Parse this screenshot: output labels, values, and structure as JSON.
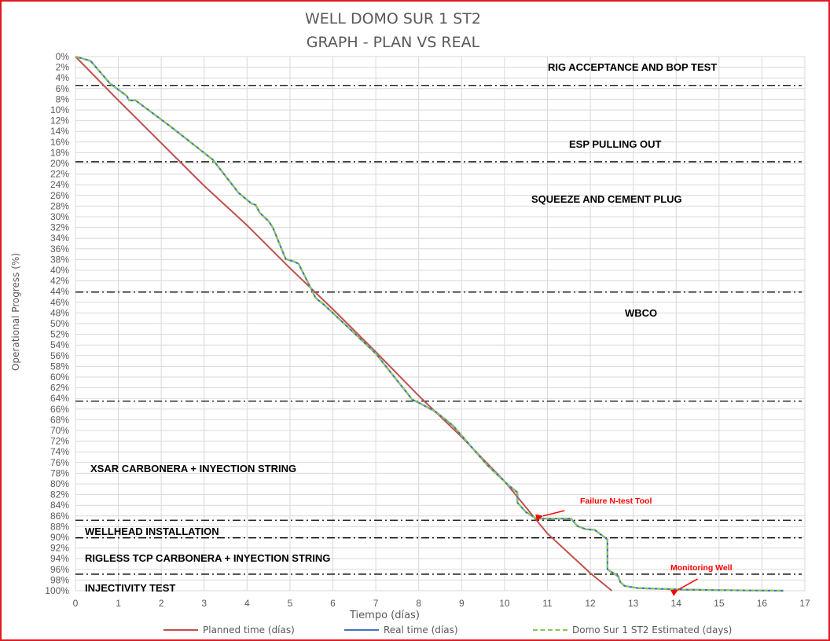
{
  "chart_data": {
    "type": "line",
    "title": "WELL DOMO SUR 1 ST2",
    "subtitle": "GRAPH  - PLAN VS REAL",
    "xlabel": "Tiempo (días)",
    "ylabel": "Operational Progress (%)",
    "xlim": [
      0,
      17
    ],
    "ylim": [
      0,
      100
    ],
    "y_inverted": true,
    "x_ticks": [
      0,
      1,
      2,
      3,
      4,
      5,
      6,
      7,
      8,
      9,
      10,
      11,
      12,
      13,
      14,
      15,
      16,
      17
    ],
    "y_ticks": [
      "0%",
      "2%",
      "4%",
      "6%",
      "8%",
      "10%",
      "12%",
      "14%",
      "16%",
      "18%",
      "20%",
      "22%",
      "24%",
      "26%",
      "28%",
      "30%",
      "32%",
      "34%",
      "36%",
      "38%",
      "40%",
      "42%",
      "44%",
      "46%",
      "48%",
      "50%",
      "52%",
      "54%",
      "56%",
      "58%",
      "60%",
      "62%",
      "64%",
      "66%",
      "68%",
      "70%",
      "72%",
      "74%",
      "76%",
      "78%",
      "80%",
      "82%",
      "84%",
      "86%",
      "88%",
      "90%",
      "92%",
      "94%",
      "96%",
      "98%",
      "100%"
    ],
    "grid": true,
    "legend_position": "bottom",
    "series": [
      {
        "name": "Planned time (días)",
        "color": "#c0504d",
        "points": [
          [
            0,
            0
          ],
          [
            1,
            8.2
          ],
          [
            2,
            16.2
          ],
          [
            3,
            24.2
          ],
          [
            4,
            31.6
          ],
          [
            5,
            39.6
          ],
          [
            6,
            47.3
          ],
          [
            7,
            55.3
          ],
          [
            8,
            63.5
          ],
          [
            9,
            71.2
          ],
          [
            10,
            79.5
          ],
          [
            11,
            89.3
          ],
          [
            12,
            96.7
          ],
          [
            12.5,
            100
          ]
        ]
      },
      {
        "name": "Real time (días)",
        "color": "#4472c4",
        "points": [
          [
            0,
            0
          ],
          [
            0.35,
            0.8
          ],
          [
            0.8,
            5.0
          ],
          [
            1.2,
            7.4
          ],
          [
            1.25,
            8.2
          ],
          [
            1.4,
            8.2
          ],
          [
            2.2,
            13.0
          ],
          [
            3.2,
            19.3
          ],
          [
            3.8,
            25.5
          ],
          [
            4.1,
            27.5
          ],
          [
            4.2,
            27.8
          ],
          [
            4.3,
            29.3
          ],
          [
            4.5,
            30.8
          ],
          [
            4.6,
            32.0
          ],
          [
            4.9,
            37.9
          ],
          [
            5.1,
            38.4
          ],
          [
            5.2,
            38.8
          ],
          [
            5.6,
            45.2
          ],
          [
            5.8,
            46.5
          ],
          [
            6.5,
            51.8
          ],
          [
            7.0,
            55.6
          ],
          [
            7.85,
            64.2
          ],
          [
            8.0,
            64.8
          ],
          [
            8.4,
            66.5
          ],
          [
            8.8,
            69.1
          ],
          [
            9.6,
            76.5
          ],
          [
            10.1,
            80.3
          ],
          [
            10.3,
            81.6
          ],
          [
            10.3,
            83.5
          ],
          [
            10.5,
            85.3
          ],
          [
            10.75,
            86.5
          ],
          [
            11.55,
            86.5
          ],
          [
            11.7,
            87.9
          ],
          [
            11.9,
            88.5
          ],
          [
            12.1,
            88.6
          ],
          [
            12.4,
            90.4
          ],
          [
            12.4,
            96.0
          ],
          [
            12.65,
            97.3
          ],
          [
            12.7,
            98.4
          ],
          [
            12.8,
            99.1
          ],
          [
            13.1,
            99.5
          ],
          [
            14.2,
            99.8
          ],
          [
            15.0,
            99.9
          ],
          [
            16.5,
            100
          ]
        ]
      },
      {
        "name": "Domo Sur 1 ST2 Estimated (days)",
        "color": "#8cc751",
        "dashed": true,
        "points": [
          [
            0,
            0
          ],
          [
            0.35,
            0.8
          ],
          [
            0.8,
            5.0
          ],
          [
            1.2,
            7.4
          ],
          [
            1.25,
            8.2
          ],
          [
            1.4,
            8.2
          ],
          [
            2.2,
            13.0
          ],
          [
            3.2,
            19.3
          ],
          [
            3.8,
            25.5
          ],
          [
            4.1,
            27.5
          ],
          [
            4.2,
            27.8
          ],
          [
            4.3,
            29.3
          ],
          [
            4.5,
            30.8
          ],
          [
            4.6,
            32.0
          ],
          [
            4.9,
            37.9
          ],
          [
            5.1,
            38.4
          ],
          [
            5.2,
            38.8
          ],
          [
            5.6,
            45.2
          ],
          [
            5.8,
            46.5
          ],
          [
            6.5,
            51.8
          ],
          [
            7.0,
            55.6
          ],
          [
            7.85,
            64.2
          ],
          [
            8.0,
            64.8
          ],
          [
            8.4,
            66.5
          ],
          [
            8.8,
            69.1
          ],
          [
            9.6,
            76.5
          ],
          [
            10.1,
            80.3
          ],
          [
            10.3,
            81.6
          ],
          [
            10.3,
            83.5
          ],
          [
            10.5,
            85.3
          ],
          [
            10.75,
            86.5
          ],
          [
            11.55,
            86.5
          ],
          [
            11.7,
            87.9
          ],
          [
            11.9,
            88.5
          ],
          [
            12.1,
            88.6
          ],
          [
            12.4,
            90.4
          ],
          [
            12.4,
            96.0
          ],
          [
            12.65,
            97.3
          ],
          [
            12.7,
            98.4
          ],
          [
            12.8,
            99.1
          ],
          [
            13.1,
            99.5
          ],
          [
            14.2,
            99.8
          ],
          [
            15.0,
            99.9
          ],
          [
            16.5,
            100
          ]
        ]
      }
    ],
    "phase_lines": [
      5.4,
      19.7,
      44.1,
      64.5,
      86.8,
      90.1,
      96.9
    ],
    "phase_labels": [
      {
        "text": "RIG ACCEPTANCE AND BOP TEST"
      },
      {
        "text": "ESP PULLING OUT"
      },
      {
        "text": "SQUEEZE AND CEMENT PLUG"
      },
      {
        "text": "WBCO"
      },
      {
        "text": "XSAR CARBONERA + INYECTION STRING"
      },
      {
        "text": "WELLHEAD INSTALLATION"
      },
      {
        "text": "RIGLESS TCP CARBONERA + INYECTION STRING"
      },
      {
        "text": "INJECTIVITY TEST"
      }
    ],
    "annotations": [
      {
        "text": "Failure N-test Tool",
        "color": "#ff0000"
      },
      {
        "text": "Monitoring Well",
        "color": "#ff0000"
      }
    ]
  }
}
